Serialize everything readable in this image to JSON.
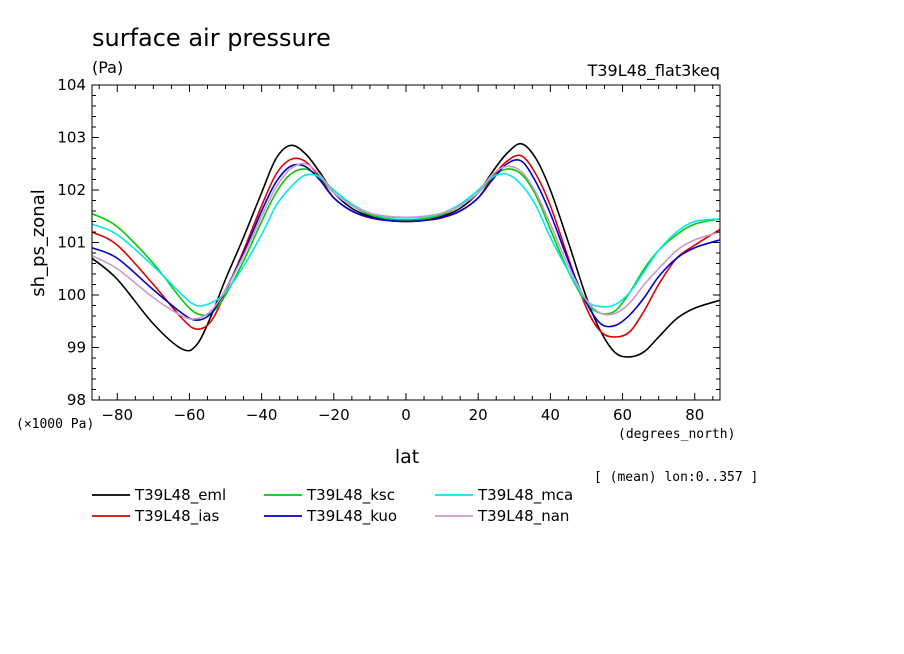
{
  "chart_data": {
    "type": "line",
    "title": "surface air pressure",
    "units": "(Pa)",
    "experiment": "T39L48_flat3keq",
    "ylabel": "sh_ps_zonal",
    "yscale_label": "(×1000 Pa)",
    "xlabel": "lat",
    "xunits": "(degrees_north)",
    "note": "[ (mean) lon:0..357 ]",
    "xlim": [
      -87,
      87
    ],
    "ylim": [
      98,
      104
    ],
    "xticks": [
      "−80",
      "−60",
      "−40",
      "−20",
      "0",
      "20",
      "40",
      "60",
      "80"
    ],
    "xtick_values": [
      -80,
      -60,
      -40,
      -20,
      0,
      20,
      40,
      60,
      80
    ],
    "yticks": [
      "98",
      "99",
      "100",
      "101",
      "102",
      "103",
      "104"
    ],
    "ytick_values": [
      98,
      99,
      100,
      101,
      102,
      103,
      104
    ],
    "x": [
      -87,
      -80,
      -70,
      -62,
      -58,
      -54,
      -50,
      -45,
      -40,
      -36,
      -32,
      -28,
      -24,
      -20,
      -15,
      -10,
      -5,
      0,
      5,
      10,
      15,
      20,
      24,
      28,
      32,
      36,
      40,
      45,
      50,
      54,
      58,
      62,
      66,
      70,
      75,
      80,
      87
    ],
    "series": [
      {
        "name": "T39L48_eml",
        "color": "#000000",
        "values": [
          100.7,
          100.3,
          99.45,
          98.97,
          99.05,
          99.6,
          100.3,
          101.1,
          101.95,
          102.6,
          102.85,
          102.7,
          102.35,
          101.95,
          101.65,
          101.5,
          101.42,
          101.4,
          101.42,
          101.5,
          101.65,
          101.95,
          102.35,
          102.7,
          102.88,
          102.6,
          102.0,
          101.0,
          99.95,
          99.3,
          98.9,
          98.82,
          98.92,
          99.2,
          99.55,
          99.75,
          99.9
        ]
      },
      {
        "name": "T39L48_ias",
        "color": "#dd0000",
        "values": [
          101.2,
          100.95,
          100.2,
          99.55,
          99.35,
          99.5,
          100.05,
          100.85,
          101.7,
          102.3,
          102.58,
          102.55,
          102.25,
          101.85,
          101.6,
          101.47,
          101.42,
          101.42,
          101.42,
          101.47,
          101.6,
          101.85,
          102.25,
          102.55,
          102.65,
          102.3,
          101.7,
          100.7,
          99.75,
          99.3,
          99.2,
          99.3,
          99.7,
          100.2,
          100.7,
          100.95,
          101.25
        ]
      },
      {
        "name": "T39L48_ksc",
        "color": "#00cc00",
        "values": [
          101.55,
          101.3,
          100.6,
          99.9,
          99.65,
          99.65,
          100.0,
          100.65,
          101.4,
          101.95,
          102.3,
          102.4,
          102.25,
          101.95,
          101.7,
          101.53,
          101.45,
          101.43,
          101.45,
          101.53,
          101.7,
          101.95,
          102.25,
          102.4,
          102.3,
          101.9,
          101.25,
          100.45,
          99.85,
          99.65,
          99.7,
          100.05,
          100.5,
          100.85,
          101.15,
          101.35,
          101.45
        ]
      },
      {
        "name": "T39L48_kuo",
        "color": "#0000cc",
        "values": [
          100.9,
          100.7,
          100.1,
          99.65,
          99.52,
          99.65,
          100.1,
          100.8,
          101.6,
          102.15,
          102.45,
          102.45,
          102.2,
          101.85,
          101.6,
          101.48,
          101.42,
          101.4,
          101.42,
          101.48,
          101.6,
          101.85,
          102.2,
          102.5,
          102.55,
          102.15,
          101.55,
          100.65,
          99.85,
          99.45,
          99.42,
          99.62,
          99.95,
          100.35,
          100.7,
          100.9,
          101.05
        ]
      },
      {
        "name": "T39L48_mca",
        "color": "#00e8e8",
        "values": [
          101.35,
          101.15,
          100.55,
          100.0,
          99.8,
          99.85,
          100.05,
          100.55,
          101.15,
          101.7,
          102.05,
          102.28,
          102.25,
          102.0,
          101.73,
          101.56,
          101.48,
          101.47,
          101.48,
          101.56,
          101.73,
          102.0,
          102.25,
          102.3,
          102.1,
          101.7,
          101.1,
          100.45,
          99.9,
          99.78,
          99.82,
          100.05,
          100.45,
          100.85,
          101.2,
          101.4,
          101.45
        ]
      },
      {
        "name": "T39L48_nan",
        "color": "#cc99cc",
        "values": [
          100.75,
          100.5,
          99.95,
          99.6,
          99.55,
          99.7,
          100.1,
          100.75,
          101.5,
          102.05,
          102.4,
          102.5,
          102.3,
          101.95,
          101.7,
          101.56,
          101.5,
          101.48,
          101.5,
          101.56,
          101.7,
          101.95,
          102.3,
          102.45,
          102.35,
          101.95,
          101.35,
          100.55,
          99.9,
          99.65,
          99.65,
          99.85,
          100.2,
          100.5,
          100.85,
          101.05,
          101.2
        ]
      }
    ]
  }
}
